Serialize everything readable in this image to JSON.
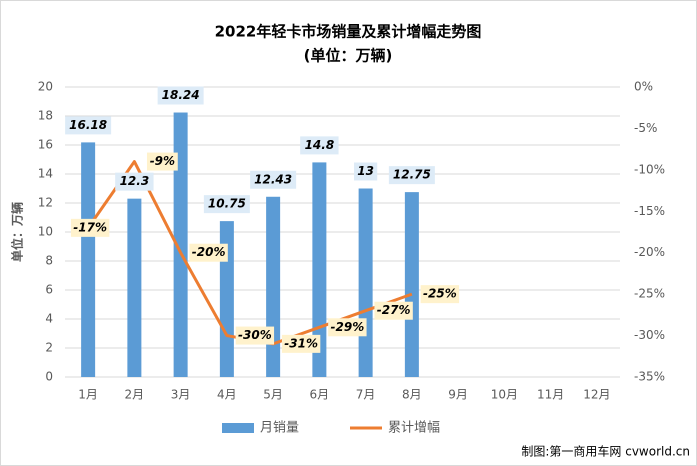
{
  "chart_data": {
    "type": "bar_line",
    "title": "2022年轻卡市场销量及累计增幅走势图",
    "subtitle": "(单位：万辆)",
    "y_label": "单位：万辆",
    "source": "制图:第一商用车网 cvworld.cn",
    "categories": [
      "1月",
      "2月",
      "3月",
      "4月",
      "5月",
      "6月",
      "7月",
      "8月",
      "9月",
      "10月",
      "11月",
      "12月"
    ],
    "ylim": [
      0,
      20
    ],
    "yticks": [
      0,
      2,
      4,
      6,
      8,
      10,
      12,
      14,
      16,
      18,
      20
    ],
    "y2lim": [
      -35,
      0
    ],
    "y2ticks": [
      {
        "value": 0,
        "label": "0%"
      },
      {
        "value": -5,
        "label": "-5%"
      },
      {
        "value": -10,
        "label": "-10%"
      },
      {
        "value": -15,
        "label": "-15%"
      },
      {
        "value": -20,
        "label": "-20%"
      },
      {
        "value": -25,
        "label": "-25%"
      },
      {
        "value": -30,
        "label": "-30%"
      },
      {
        "value": -35,
        "label": "-35%"
      }
    ],
    "grid": true,
    "series": [
      {
        "name": "月销量",
        "type": "bar",
        "color": "#5b9bd5",
        "values": [
          16.18,
          12.3,
          18.24,
          10.75,
          12.43,
          14.8,
          13,
          12.75,
          null,
          null,
          null,
          null
        ]
      },
      {
        "name": "累计增幅",
        "type": "line",
        "axis": "y2",
        "color": "#ed7d31",
        "values": [
          -17,
          -9,
          -20,
          -30,
          -31,
          -29,
          -27,
          -25,
          null,
          null,
          null,
          null
        ],
        "value_labels": [
          "-17%",
          "-9%",
          "-20%",
          "-30%",
          "-31%",
          "-29%",
          "-27%",
          "-25%",
          null,
          null,
          null,
          null
        ]
      }
    ]
  }
}
